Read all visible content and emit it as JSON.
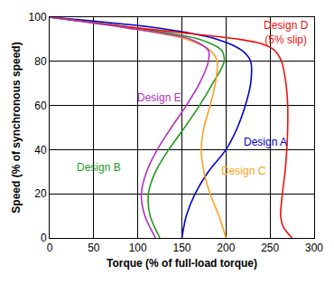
{
  "chart_data": {
    "type": "line",
    "x_label": "Torque (% of full-load torque)",
    "y_label": "Speed (% of synchronous speed)",
    "xlim": [
      0,
      300
    ],
    "ylim": [
      0,
      100
    ],
    "xticks": [
      0,
      50,
      100,
      150,
      200,
      250,
      300
    ],
    "yticks": [
      0,
      20,
      40,
      60,
      80,
      100
    ],
    "grid": true,
    "series": [
      {
        "name": "Design A",
        "color": "#0000cc",
        "x": [
          150,
          155,
          165,
          180,
          200,
          213,
          222,
          228,
          228,
          218,
          190,
          125,
          0
        ],
        "values": [
          0,
          10,
          20,
          30,
          40,
          50,
          60,
          70,
          80,
          85,
          90,
          95,
          100
        ]
      },
      {
        "name": "Design B",
        "color": "#1f9a1f",
        "x": [
          125,
          114,
          112,
          120,
          135,
          153,
          170,
          185,
          198,
          195,
          170,
          100,
          0
        ],
        "values": [
          0,
          10,
          20,
          30,
          40,
          50,
          60,
          70,
          80,
          85,
          90,
          95,
          100
        ]
      },
      {
        "name": "Design C",
        "color": "#ffa020",
        "x": [
          200,
          192,
          182,
          175,
          172,
          175,
          182,
          188,
          190,
          182,
          155,
          90,
          0
        ],
        "values": [
          0,
          10,
          20,
          30,
          40,
          50,
          60,
          70,
          80,
          85,
          90,
          95,
          100
        ]
      },
      {
        "name": "Design D (5% slip)",
        "color": "#ee1111",
        "x": [
          275,
          265,
          262,
          264,
          267,
          269,
          270,
          270,
          268,
          263,
          255,
          240,
          215,
          150,
          80,
          0
        ],
        "values": [
          0,
          5,
          10,
          20,
          30,
          40,
          50,
          60,
          70,
          80,
          85,
          88,
          90,
          93,
          96,
          100
        ]
      },
      {
        "name": "Design E",
        "color": "#b030c0",
        "x": [
          120,
          108,
          104,
          110,
          122,
          138,
          155,
          170,
          180,
          180,
          160,
          90,
          0
        ],
        "values": [
          0,
          10,
          20,
          30,
          40,
          50,
          60,
          70,
          80,
          85,
          90,
          95,
          100
        ]
      }
    ]
  }
}
